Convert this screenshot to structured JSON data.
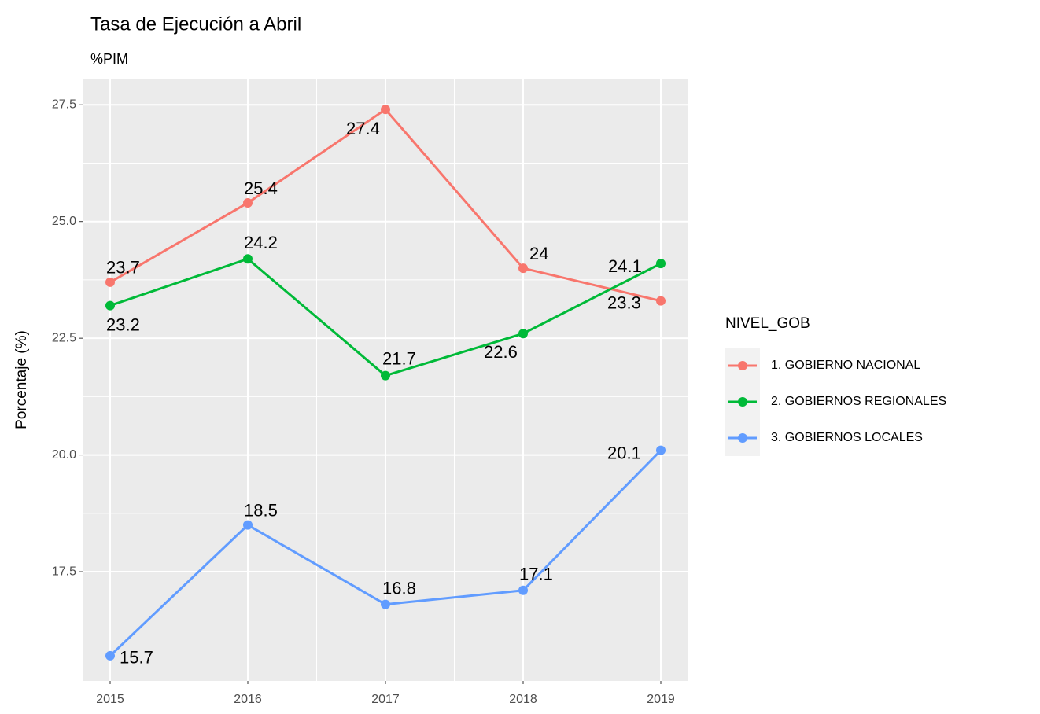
{
  "chart_data": {
    "type": "line",
    "title": "Tasa de Ejecución a  Abril",
    "subtitle": "%PIM",
    "y_label": "Porcentaje (%)",
    "legend_title": "NIVEL_GOB",
    "legend_position": "right",
    "grid": true,
    "x": [
      2015,
      2016,
      2017,
      2018,
      2019
    ],
    "xlim": [
      2014.8,
      2019.2
    ],
    "xticks": [
      2015,
      2016,
      2017,
      2018,
      2019
    ],
    "ylim": [
      15.16,
      28.06
    ],
    "yticks": [
      17.5,
      {
        "value": 20,
        "label": "20.0"
      },
      22.5,
      {
        "value": 25,
        "label": "25.0"
      },
      27.5
    ],
    "series": [
      {
        "name": "1. GOBIERNO NACIONAL",
        "color": "#F8766D",
        "values": [
          23.7,
          25.4,
          27.4,
          24,
          23.3
        ]
      },
      {
        "name": "2. GOBIERNOS REGIONALES",
        "color": "#00BA38",
        "values": [
          23.2,
          24.2,
          21.7,
          22.6,
          24.1
        ]
      },
      {
        "name": "3. GOBIERNOS LOCALES",
        "color": "#619CFF",
        "values": [
          15.7,
          18.5,
          16.8,
          17.1,
          20.1
        ]
      }
    ]
  }
}
